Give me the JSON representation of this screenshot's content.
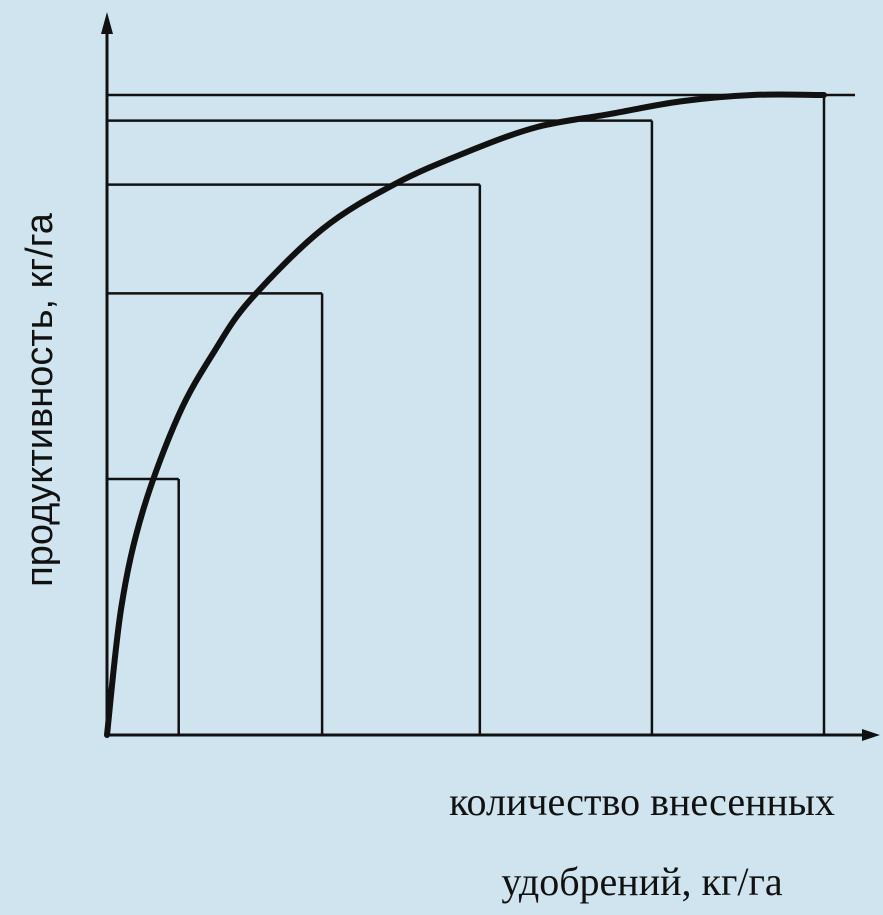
{
  "chart_data": {
    "type": "line",
    "title": "",
    "ylabel": "продуктивность, кг/га",
    "xlabel_line1": "количество внесенных",
    "xlabel_line2": "удобрений, кг/га",
    "grid": false,
    "xlim": [
      0,
      1.05
    ],
    "ylim": [
      0,
      1.1
    ],
    "curve": {
      "x": [
        0,
        0.02,
        0.05,
        0.1,
        0.15,
        0.2,
        0.3,
        0.4,
        0.5,
        0.6,
        0.7,
        0.8,
        0.9,
        1.0
      ],
      "y": [
        0,
        0.2,
        0.35,
        0.5,
        0.6,
        0.68,
        0.79,
        0.86,
        0.91,
        0.95,
        0.97,
        0.99,
        1.0,
        1.0
      ]
    },
    "reference_levels": [
      {
        "x": 0.1,
        "y": 0.4
      },
      {
        "x": 0.3,
        "y": 0.69
      },
      {
        "x": 0.52,
        "y": 0.86
      },
      {
        "x": 0.76,
        "y": 0.96
      },
      {
        "x": 1.0,
        "y": 1.0
      }
    ]
  },
  "colors": {
    "background": "#cfe4ee",
    "ink": "#111111"
  }
}
